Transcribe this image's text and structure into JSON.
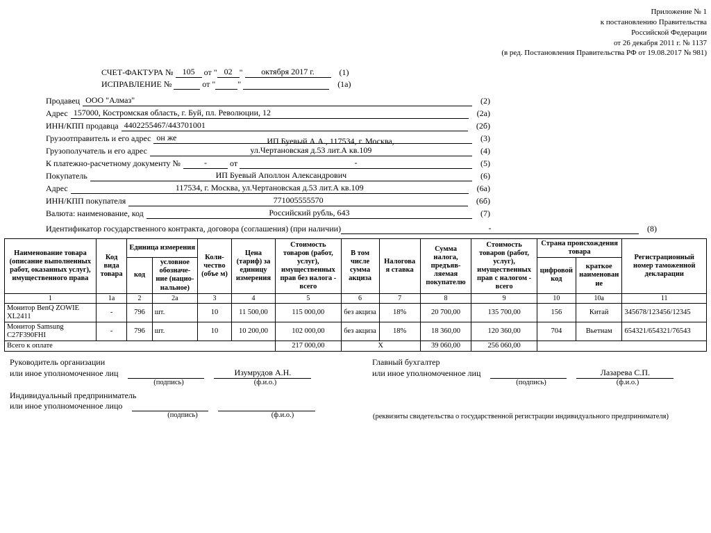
{
  "appendix": {
    "line1": "Приложение № 1",
    "line2": "к постановлению Правительства",
    "line3": "Российской Федерации",
    "line4": "от 26 декабря 2011 г. № 1137",
    "line5": "(в ред. Постановления Правительства РФ от 19.08.2017 № 981)"
  },
  "title": {
    "invoice_label": "СЧЕТ-ФАКТУРА  №",
    "invoice_no": "105",
    "from": "от",
    "day": "02",
    "month_year": "октября 2017 г.",
    "num1": "(1)",
    "correction_label": "ИСПРАВЛЕНИЕ  №",
    "corr_no": "",
    "corr_from": "от",
    "corr_day": "",
    "corr_rest": "",
    "num1a": "(1а)"
  },
  "fields": {
    "seller_label": "Продавец",
    "seller": "ООО \"Алмаз\"",
    "seller_num": "(2)",
    "addr_label": "Адрес",
    "addr": "157000, Костромская область, г. Буй, пл. Революции, 12",
    "addr_num": "(2а)",
    "inn_seller_label": "ИНН/КПП продавца",
    "inn_seller": "4402255467/443701001",
    "inn_seller_num": "(2б)",
    "shipper_label": "Грузоотправитель и его адрес",
    "shipper": "он же",
    "shipper_num": "(3)",
    "consignee_label": "Грузополучатель и его адрес",
    "consignee_top": "ИП Буевый А.А., 117534, г. Москва,",
    "consignee": "ул.Чертановская д.53 лит.А  кв.109",
    "consignee_num": "(4)",
    "paydoc_label": "К платежно-расчетному документу №",
    "paydoc_no": "-",
    "paydoc_from": "от",
    "paydoc_date": "-",
    "paydoc_num": "(5)",
    "buyer_label": "Покупатель",
    "buyer": "ИП Буевый Аполлон Александрович",
    "buyer_num": "(6)",
    "buyer_addr_label": "Адрес",
    "buyer_addr": "117534, г. Москва, ул.Чертановская д.53 лит.А  кв.109",
    "buyer_addr_num": "(6а)",
    "inn_buyer_label": "ИНН/КПП покупателя",
    "inn_buyer": "771005555570",
    "inn_buyer_num": "(6б)",
    "currency_label": "Валюта: наименование, код",
    "currency": "Российский рубль, 643",
    "currency_num": "(7)",
    "gov_label": "Идентификатор государственного контракта, договора (соглашения) (при наличии)",
    "gov_val": "-",
    "gov_num": "(8)"
  },
  "table": {
    "headers": {
      "name": "Наименование товара (описание выполненных работ, оказанных услуг), имущественного права",
      "kind_code": "Код вида товара",
      "unit": "Единица измерения",
      "unit_code": "код",
      "unit_name": "условное обозначе-ние (нацио-нальное)",
      "qty": "Коли-чество (объе м)",
      "price": "Цена (тариф) за единицу измерения",
      "cost_notax": "Стоимость товаров (работ, услуг), имущественных прав без налога - всего",
      "excise": "В том числе сумма акциза",
      "tax_rate": "Налогова я ставка",
      "tax_sum": "Сумма налога, предъяв-ляемая покупателю",
      "cost_wtax": "Стоимость товаров (работ, услуг), имущественных прав с налогом - всего",
      "country": "Страна происхождения товара",
      "country_code": "цифровой код",
      "country_name": "краткое наименован ие",
      "decl": "Регистрационный номер таможенной декларации"
    },
    "colnums": [
      "1",
      "1а",
      "2",
      "2а",
      "3",
      "4",
      "5",
      "6",
      "7",
      "8",
      "9",
      "10",
      "10а",
      "11"
    ],
    "rows": [
      {
        "name": "Монитор BenQ ZOWIE XL2411",
        "kind": "-",
        "ucode": "796",
        "uname": "шт.",
        "qty": "10",
        "price": "11 500,00",
        "cost_notax": "115 000,00",
        "excise": "без акциза",
        "rate": "18%",
        "tax": "20 700,00",
        "cost_wtax": "135 700,00",
        "ccode": "156",
        "cname": "Китай",
        "decl": "345678/123456/12345"
      },
      {
        "name": "Монитор Samsung C27F390FHI",
        "kind": "-",
        "ucode": "796",
        "uname": "шт.",
        "qty": "10",
        "price": "10 200,00",
        "cost_notax": "102 000,00",
        "excise": "без акциза",
        "rate": "18%",
        "tax": "18 360,00",
        "cost_wtax": "120 360,00",
        "ccode": "704",
        "cname": "Вьетнам",
        "decl": "654321/654321/76543"
      }
    ],
    "total_label": "Всего к оплате",
    "total_notax": "217 000,00",
    "total_x": "X",
    "total_tax": "39 060,00",
    "total_wtax": "256 060,00"
  },
  "sign": {
    "head_label": "Руководитель организации",
    "auth_label": "или иное уполномоченное лиц",
    "head_name": "Изумрудов А.Н.",
    "acct_label": "Главный бухгалтер",
    "acct_auth_label": "или иное уполномоченное лиц",
    "acct_name": "Лазарева С.П.",
    "sub_sign": "(подпись)",
    "sub_fio": "(ф.и.о.)",
    "ip_label": "Индивидуальный предприниматель",
    "ip_auth": "или иное уполномоченное лицо",
    "ip_note": "(реквизиты свидетельства о государственной регистрации индивидуального предпринимателя)"
  }
}
